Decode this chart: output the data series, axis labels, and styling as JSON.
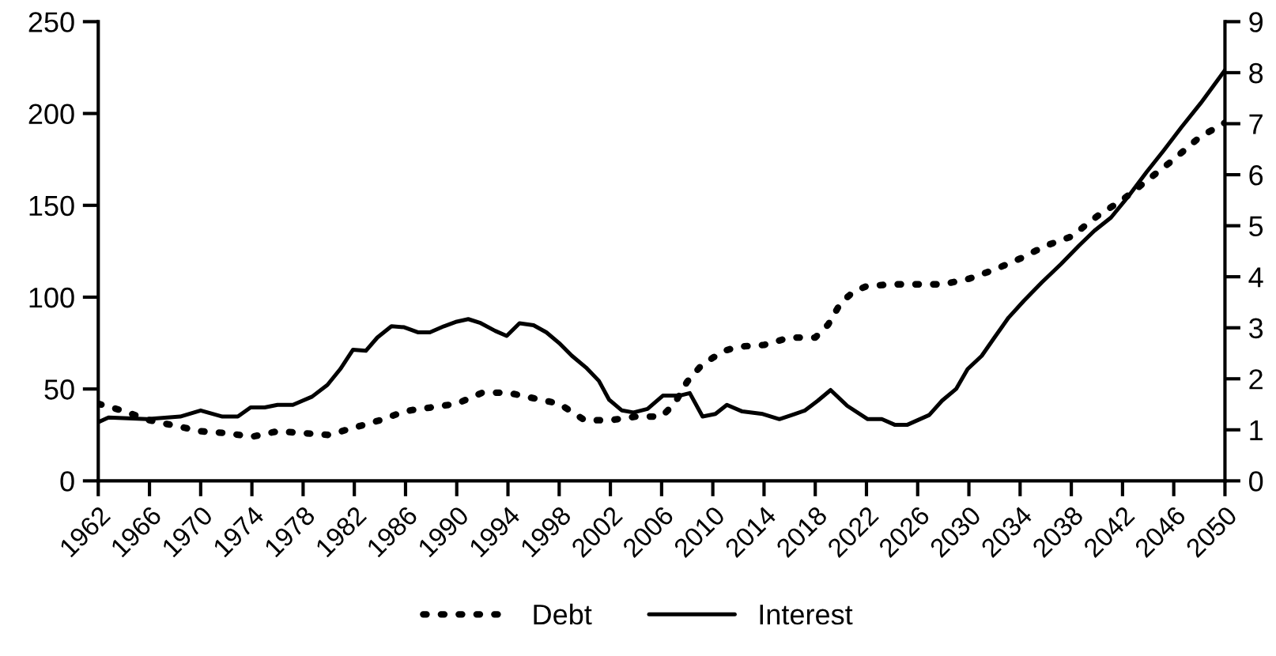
{
  "chart_data": {
    "type": "line",
    "xlim": [
      1962,
      2050
    ],
    "xticks": [
      1962,
      1966,
      1970,
      1974,
      1978,
      1982,
      1986,
      1990,
      1994,
      1998,
      2002,
      2006,
      2010,
      2014,
      2018,
      2022,
      2026,
      2030,
      2034,
      2038,
      2042,
      2046,
      2050
    ],
    "ylim": [
      0,
      250
    ],
    "yticks": [
      0,
      50,
      100,
      150,
      200,
      250
    ],
    "y2lim": [
      0,
      9
    ],
    "y2ticks": [
      0,
      1,
      2,
      3,
      4,
      5,
      6,
      7,
      8,
      9
    ],
    "grid": false,
    "legend": "bottom",
    "series": [
      {
        "name": "Debt",
        "color": "#000000",
        "line_style": "dotted",
        "x": [
          1962,
          1964,
          1966,
          1968,
          1970,
          1972,
          1974,
          1976,
          1978,
          1980,
          1982,
          1984,
          1986,
          1988,
          1990,
          1992,
          1994,
          1996,
          1998,
          2000,
          2002,
          2004,
          2006,
          2007,
          2008,
          2009,
          2010,
          2011,
          2012,
          2014,
          2016,
          2018,
          2019,
          2020,
          2021,
          2022,
          2024,
          2026,
          2028,
          2030,
          2032,
          2034,
          2036,
          2038,
          2040,
          2042,
          2044,
          2046,
          2048,
          2050
        ],
        "values": [
          42,
          38,
          33,
          30,
          27,
          26,
          24,
          27,
          26,
          25,
          29,
          33,
          38,
          40,
          42,
          48,
          48,
          45,
          42,
          33,
          33,
          35,
          35,
          42,
          54,
          62,
          67,
          71,
          73,
          74,
          78,
          78,
          85,
          97,
          103,
          106,
          107,
          107,
          107,
          110,
          115,
          121,
          128,
          133,
          144,
          153,
          164,
          175,
          187,
          195
        ]
      },
      {
        "name": "Interest",
        "color": "#000000",
        "line_style": "solid",
        "axis": "y2",
        "x": [
          1962,
          1962.8,
          1965.8,
          1968.4,
          1970,
          1971.7,
          1972.9,
          1973.9,
          1975,
          1976,
          1977.2,
          1978.7,
          1979.9,
          1980.9,
          1981.9,
          1982.9,
          1983.8,
          1984.9,
          1985.9,
          1987,
          1987.9,
          1989,
          1990,
          1990.9,
          1991.8,
          1993,
          1993.9,
          1994.9,
          1996,
          1997,
          1998,
          1999,
          2000.1,
          2001.1,
          2001.9,
          2002.9,
          2003.8,
          2004.9,
          2006.1,
          2007.4,
          2008.2,
          2009.2,
          2010.2,
          2011.1,
          2012.3,
          2013.9,
          2015.2,
          2016.4,
          2017.2,
          2018.2,
          2019.2,
          2020.5,
          2022.1,
          2023.2,
          2024.2,
          2025.2,
          2026.9,
          2027.9,
          2029,
          2029.9,
          2031,
          2032,
          2033.1,
          2034.3,
          2035.7,
          2037.2,
          2038.6,
          2039.8,
          2041.1,
          2042.5,
          2043.9,
          2045.2,
          2046.6,
          2048.1,
          2050
        ],
        "values": [
          1.15,
          1.24,
          1.21,
          1.26,
          1.38,
          1.26,
          1.26,
          1.44,
          1.44,
          1.49,
          1.49,
          1.65,
          1.88,
          2.19,
          2.57,
          2.55,
          2.81,
          3.03,
          3.01,
          2.91,
          2.91,
          3.03,
          3.12,
          3.17,
          3.1,
          2.94,
          2.84,
          3.09,
          3.05,
          2.91,
          2.7,
          2.45,
          2.22,
          1.96,
          1.59,
          1.38,
          1.34,
          1.41,
          1.67,
          1.67,
          1.72,
          1.26,
          1.31,
          1.49,
          1.36,
          1.31,
          1.21,
          1.31,
          1.38,
          1.57,
          1.78,
          1.47,
          1.21,
          1.21,
          1.1,
          1.1,
          1.29,
          1.57,
          1.8,
          2.19,
          2.45,
          2.81,
          3.2,
          3.53,
          3.89,
          4.25,
          4.61,
          4.9,
          5.16,
          5.59,
          6.06,
          6.47,
          6.93,
          7.4,
          8.05
        ]
      }
    ]
  }
}
